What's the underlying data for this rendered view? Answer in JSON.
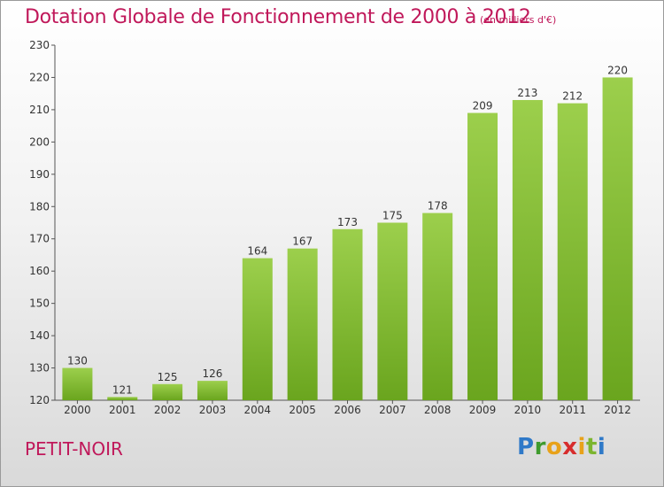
{
  "header": {
    "title": "Dotation Globale de Fonctionnement de 2000 à 2012",
    "unit": "(en milliers d'€)"
  },
  "footer": {
    "commune": "PETIT-NOIR",
    "logo_text": "Proxiti"
  },
  "colors": {
    "title": "#c0185a",
    "bar_light": "#9ccf4c",
    "bar_dark": "#6aa51e"
  },
  "chart_data": {
    "type": "bar",
    "title": "Dotation Globale de Fonctionnement de 2000 à 2012",
    "subtitle": "(en milliers d'€)",
    "xlabel": "",
    "ylabel": "",
    "categories": [
      "2000",
      "2001",
      "2002",
      "2003",
      "2004",
      "2005",
      "2006",
      "2007",
      "2008",
      "2009",
      "2010",
      "2011",
      "2012"
    ],
    "values": [
      130,
      121,
      125,
      126,
      164,
      167,
      173,
      175,
      178,
      209,
      213,
      212,
      220
    ],
    "ylim": [
      120,
      230
    ],
    "yticks": [
      120,
      130,
      140,
      150,
      160,
      170,
      180,
      190,
      200,
      210,
      220,
      230
    ],
    "grid": false,
    "data_labels": true
  }
}
